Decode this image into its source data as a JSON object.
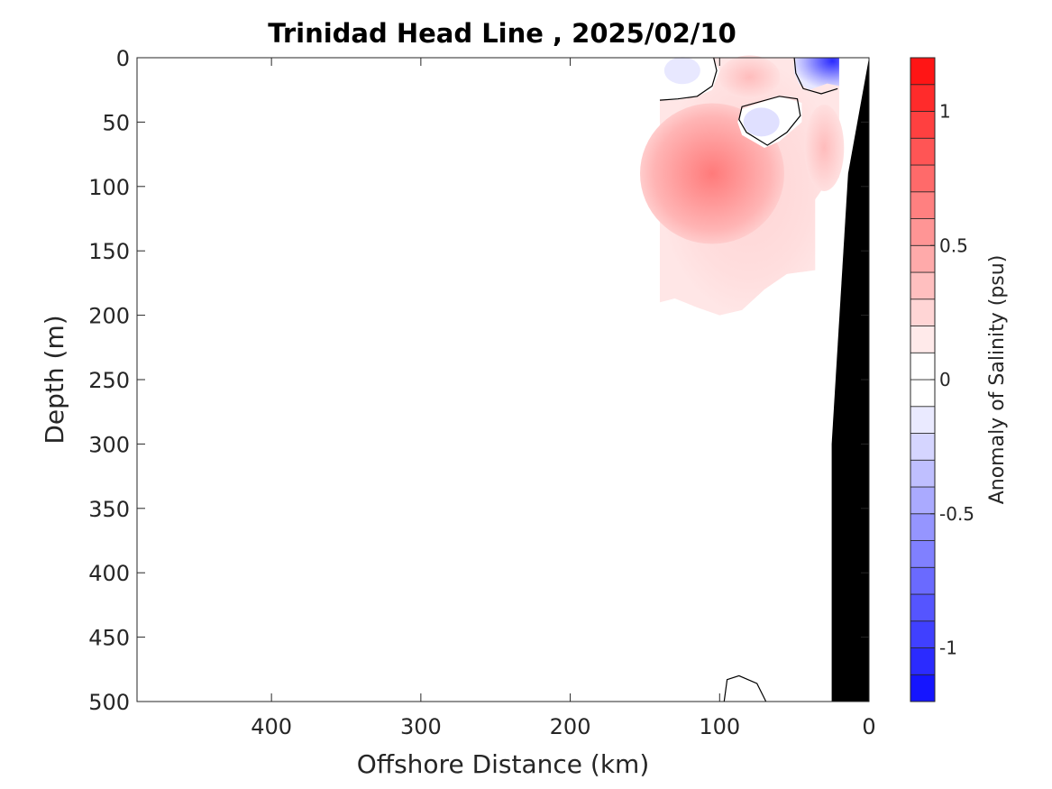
{
  "chart_data": {
    "type": "heatmap",
    "title": "Trinidad Head Line , 2025/02/10",
    "xlabel": "Offshore Distance (km)",
    "ylabel": "Depth (m)",
    "colorbar_label": "Anomaly of Salinity (psu)",
    "xlim": [
      490,
      0
    ],
    "ylim": [
      0,
      500
    ],
    "x_reversed": true,
    "y_reversed": true,
    "x_ticks": [
      400,
      300,
      200,
      100,
      0
    ],
    "x_tick_labels": [
      "400",
      "300",
      "200",
      "100",
      "0"
    ],
    "y_ticks": [
      0,
      50,
      100,
      150,
      200,
      250,
      300,
      350,
      400,
      450,
      500
    ],
    "y_tick_labels": [
      "0",
      "50",
      "100",
      "150",
      "200",
      "250",
      "300",
      "350",
      "400",
      "450",
      "500"
    ],
    "color_range": [
      -1.2,
      1.2
    ],
    "color_levels": [
      -1.2,
      -1.1,
      -1.0,
      -0.9,
      -0.8,
      -0.7,
      -0.6,
      -0.5,
      -0.4,
      -0.3,
      -0.2,
      -0.1,
      0,
      0.1,
      0.2,
      0.3,
      0.4,
      0.5,
      0.6,
      0.7,
      0.8,
      0.9,
      1.0,
      1.1,
      1.2
    ],
    "colorbar_ticks": [
      1,
      0.5,
      0,
      -0.5,
      -1
    ],
    "colorbar_tick_labels": [
      "1",
      "0.5",
      "0",
      "-0.5",
      "-1"
    ],
    "colormap": {
      "negative": "#0000ff",
      "zero": "#ffffff",
      "positive": "#ff0000"
    },
    "grid": false,
    "data_region": {
      "x_range": [
        140,
        20
      ],
      "depth_range": [
        0,
        200
      ]
    },
    "features": [
      {
        "name": "offshore-warm-anomaly",
        "x_km": 110,
        "depth_m": 80,
        "value": 0.5
      },
      {
        "name": "surface-fresh-anomaly",
        "x_km": 25,
        "depth_m": 5,
        "value": -1.0
      },
      {
        "name": "subsurface-fresh-anomaly",
        "x_km": 75,
        "depth_m": 50,
        "value": -0.15
      },
      {
        "name": "outer-surface-fresh-anomaly",
        "x_km": 125,
        "depth_m": 10,
        "value": -0.15
      }
    ],
    "bathymetry": {
      "color": "#000000",
      "x_km": [
        0,
        14,
        25,
        25,
        0
      ],
      "depth_m": [
        0,
        90,
        300,
        500,
        500
      ]
    }
  }
}
